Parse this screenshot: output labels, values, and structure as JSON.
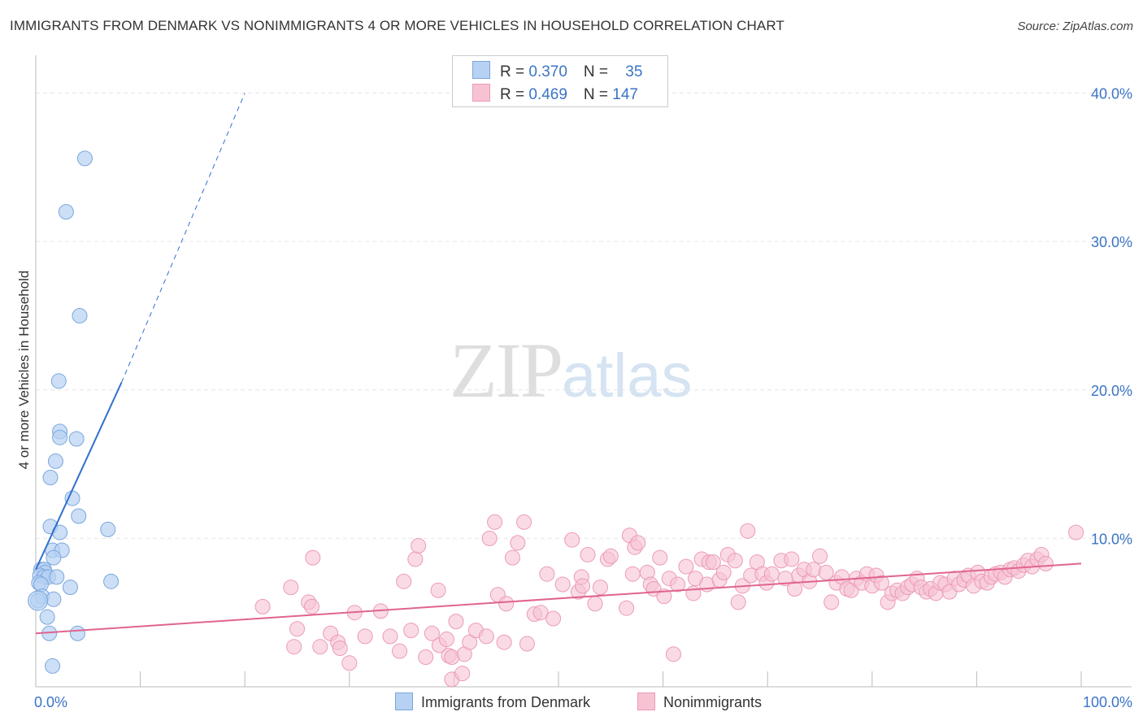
{
  "header": {
    "title": "IMMIGRANTS FROM DENMARK VS NONIMMIGRANTS 4 OR MORE VEHICLES IN HOUSEHOLD CORRELATION CHART",
    "source": "Source: ZipAtlas.com"
  },
  "watermark": {
    "zip": "ZIP",
    "atlas": "atlas"
  },
  "legend": {
    "rows": [
      {
        "r_label": "R = ",
        "r_value": "0.370",
        "n_label": "N = ",
        "n_value": "35"
      },
      {
        "r_label": "R = ",
        "r_value": "0.469",
        "n_label": "N = ",
        "n_value": "147"
      }
    ]
  },
  "bottom_legend": {
    "items": [
      {
        "label": "Immigrants from Denmark"
      },
      {
        "label": "Nonimmigrants"
      }
    ]
  },
  "colors": {
    "blue_fill": "#b7d1f2",
    "blue_stroke": "#7aa6de",
    "blue_line": "#2f6fcf",
    "pink_fill": "#f7c3d3",
    "pink_stroke": "#ec9ab5",
    "pink_line": "#e0648f",
    "tick_label": "#3a74c5",
    "grid": "#e6e6e6"
  },
  "chart_data": {
    "type": "scatter",
    "title": "IMMIGRANTS FROM DENMARK VS NONIMMIGRANTS 4 OR MORE VEHICLES IN HOUSEHOLD CORRELATION CHART",
    "xlabel": "",
    "ylabel": "4 or more Vehicles in Household",
    "xlim": [
      0,
      100
    ],
    "ylim": [
      0,
      42
    ],
    "x_tick_labels": [
      "0.0%",
      "100.0%"
    ],
    "y_ticks": [
      10,
      20,
      30,
      40
    ],
    "y_tick_labels": [
      "10.0%",
      "20.0%",
      "30.0%",
      "40.0%"
    ],
    "grid": true,
    "legend_placement": "top-center",
    "series": [
      {
        "name": "Immigrants from Denmark",
        "color": "#b7d1f2",
        "points": [
          [
            4.7,
            35.6
          ],
          [
            2.9,
            32.0
          ],
          [
            4.2,
            25.0
          ],
          [
            2.2,
            20.6
          ],
          [
            2.3,
            17.2
          ],
          [
            2.3,
            16.8
          ],
          [
            3.9,
            16.7
          ],
          [
            1.9,
            15.2
          ],
          [
            1.4,
            14.1
          ],
          [
            3.5,
            12.7
          ],
          [
            4.1,
            11.5
          ],
          [
            1.4,
            10.8
          ],
          [
            2.3,
            10.4
          ],
          [
            6.9,
            10.6
          ],
          [
            1.6,
            9.2
          ],
          [
            2.5,
            9.2
          ],
          [
            1.7,
            8.7
          ],
          [
            0.5,
            7.9
          ],
          [
            0.8,
            7.9
          ],
          [
            0.9,
            7.7
          ],
          [
            0.4,
            7.5
          ],
          [
            0.8,
            7.4
          ],
          [
            1.2,
            7.4
          ],
          [
            2.0,
            7.4
          ],
          [
            0.3,
            7.0
          ],
          [
            0.5,
            6.9
          ],
          [
            7.2,
            7.1
          ],
          [
            3.3,
            6.7
          ],
          [
            0.6,
            6.1
          ],
          [
            1.7,
            5.9
          ],
          [
            0.2,
            5.8
          ],
          [
            1.1,
            4.7
          ],
          [
            1.3,
            3.6
          ],
          [
            4.0,
            3.6
          ],
          [
            1.6,
            1.4
          ]
        ],
        "trend": {
          "x": [
            0.0,
            8.2
          ],
          "y": [
            7.9,
            20.5
          ],
          "dashed_extension": {
            "x": [
              8.2,
              20.0
            ],
            "y": [
              20.5,
              40.0
            ]
          }
        }
      },
      {
        "name": "Nonimmigrants",
        "color": "#f7c3d3",
        "points": [
          [
            21.7,
            5.4
          ],
          [
            24.4,
            6.7
          ],
          [
            26.5,
            8.7
          ],
          [
            25.0,
            3.9
          ],
          [
            26.1,
            5.7
          ],
          [
            26.4,
            5.4
          ],
          [
            24.7,
            2.7
          ],
          [
            27.2,
            2.7
          ],
          [
            28.2,
            3.6
          ],
          [
            28.9,
            3.0
          ],
          [
            29.1,
            2.6
          ],
          [
            30.0,
            1.6
          ],
          [
            30.5,
            5.0
          ],
          [
            31.5,
            3.4
          ],
          [
            33.0,
            5.1
          ],
          [
            33.9,
            3.4
          ],
          [
            34.8,
            2.4
          ],
          [
            35.2,
            7.1
          ],
          [
            35.9,
            3.8
          ],
          [
            36.3,
            8.6
          ],
          [
            36.6,
            9.5
          ],
          [
            37.3,
            2.0
          ],
          [
            37.9,
            3.6
          ],
          [
            38.5,
            6.5
          ],
          [
            38.6,
            2.8
          ],
          [
            39.3,
            3.2
          ],
          [
            39.5,
            2.1
          ],
          [
            39.8,
            2.0
          ],
          [
            39.8,
            0.5
          ],
          [
            40.2,
            4.4
          ],
          [
            40.8,
            0.9
          ],
          [
            41.0,
            2.2
          ],
          [
            41.5,
            3.0
          ],
          [
            42.1,
            3.8
          ],
          [
            43.1,
            3.4
          ],
          [
            43.4,
            10.0
          ],
          [
            43.9,
            11.1
          ],
          [
            44.2,
            6.2
          ],
          [
            44.8,
            3.0
          ],
          [
            45.0,
            5.6
          ],
          [
            45.6,
            8.7
          ],
          [
            46.1,
            9.7
          ],
          [
            46.7,
            11.1
          ],
          [
            47.0,
            2.9
          ],
          [
            47.7,
            4.9
          ],
          [
            48.3,
            5.0
          ],
          [
            48.9,
            7.6
          ],
          [
            49.5,
            4.6
          ],
          [
            50.4,
            6.9
          ],
          [
            51.3,
            9.9
          ],
          [
            51.9,
            6.4
          ],
          [
            52.2,
            7.4
          ],
          [
            52.3,
            6.8
          ],
          [
            52.8,
            8.9
          ],
          [
            53.5,
            5.6
          ],
          [
            54.0,
            6.7
          ],
          [
            54.7,
            8.6
          ],
          [
            55.0,
            8.8
          ],
          [
            56.5,
            5.3
          ],
          [
            56.8,
            10.2
          ],
          [
            57.1,
            7.6
          ],
          [
            57.3,
            9.4
          ],
          [
            57.6,
            9.7
          ],
          [
            58.5,
            7.7
          ],
          [
            58.8,
            6.9
          ],
          [
            59.1,
            6.6
          ],
          [
            59.7,
            8.7
          ],
          [
            60.1,
            6.1
          ],
          [
            60.6,
            7.3
          ],
          [
            61.0,
            2.2
          ],
          [
            61.4,
            6.9
          ],
          [
            62.2,
            8.1
          ],
          [
            62.9,
            6.3
          ],
          [
            63.1,
            7.3
          ],
          [
            63.7,
            8.6
          ],
          [
            64.2,
            6.9
          ],
          [
            64.4,
            8.4
          ],
          [
            64.8,
            8.4
          ],
          [
            65.4,
            7.2
          ],
          [
            65.8,
            7.7
          ],
          [
            66.2,
            8.9
          ],
          [
            66.9,
            8.5
          ],
          [
            67.2,
            5.7
          ],
          [
            67.6,
            6.8
          ],
          [
            68.1,
            10.5
          ],
          [
            68.4,
            7.5
          ],
          [
            69.0,
            8.4
          ],
          [
            69.5,
            7.6
          ],
          [
            69.9,
            7.0
          ],
          [
            70.4,
            7.6
          ],
          [
            71.3,
            8.5
          ],
          [
            71.7,
            7.3
          ],
          [
            72.3,
            8.6
          ],
          [
            72.6,
            6.6
          ],
          [
            73.0,
            7.5
          ],
          [
            73.5,
            7.9
          ],
          [
            74.0,
            7.1
          ],
          [
            74.4,
            7.9
          ],
          [
            75.0,
            8.8
          ],
          [
            75.6,
            7.7
          ],
          [
            76.1,
            5.7
          ],
          [
            76.6,
            7.0
          ],
          [
            77.1,
            7.4
          ],
          [
            77.6,
            6.6
          ],
          [
            78.0,
            6.5
          ],
          [
            78.5,
            7.3
          ],
          [
            79.0,
            7.0
          ],
          [
            79.5,
            7.6
          ],
          [
            80.0,
            6.8
          ],
          [
            80.4,
            7.5
          ],
          [
            80.9,
            7.0
          ],
          [
            81.5,
            5.7
          ],
          [
            81.9,
            6.3
          ],
          [
            82.4,
            6.5
          ],
          [
            82.9,
            6.3
          ],
          [
            83.4,
            6.7
          ],
          [
            83.8,
            6.9
          ],
          [
            84.3,
            7.3
          ],
          [
            84.7,
            6.7
          ],
          [
            85.2,
            6.4
          ],
          [
            85.6,
            6.6
          ],
          [
            86.1,
            6.3
          ],
          [
            86.5,
            7.0
          ],
          [
            87.0,
            6.9
          ],
          [
            87.4,
            6.4
          ],
          [
            87.9,
            7.3
          ],
          [
            88.3,
            6.9
          ],
          [
            88.8,
            7.2
          ],
          [
            89.2,
            7.5
          ],
          [
            89.7,
            6.8
          ],
          [
            90.1,
            7.7
          ],
          [
            90.5,
            7.1
          ],
          [
            91.0,
            7.0
          ],
          [
            91.4,
            7.4
          ],
          [
            91.8,
            7.6
          ],
          [
            92.3,
            7.7
          ],
          [
            92.7,
            7.4
          ],
          [
            93.2,
            7.9
          ],
          [
            93.6,
            8.0
          ],
          [
            94.0,
            7.8
          ],
          [
            94.5,
            8.2
          ],
          [
            94.9,
            8.5
          ],
          [
            95.3,
            8.1
          ],
          [
            95.8,
            8.6
          ],
          [
            96.2,
            8.9
          ],
          [
            96.6,
            8.3
          ],
          [
            99.5,
            10.4
          ]
        ],
        "trend": {
          "x": [
            0.0,
            100.0
          ],
          "y": [
            3.6,
            8.3
          ]
        }
      }
    ]
  }
}
